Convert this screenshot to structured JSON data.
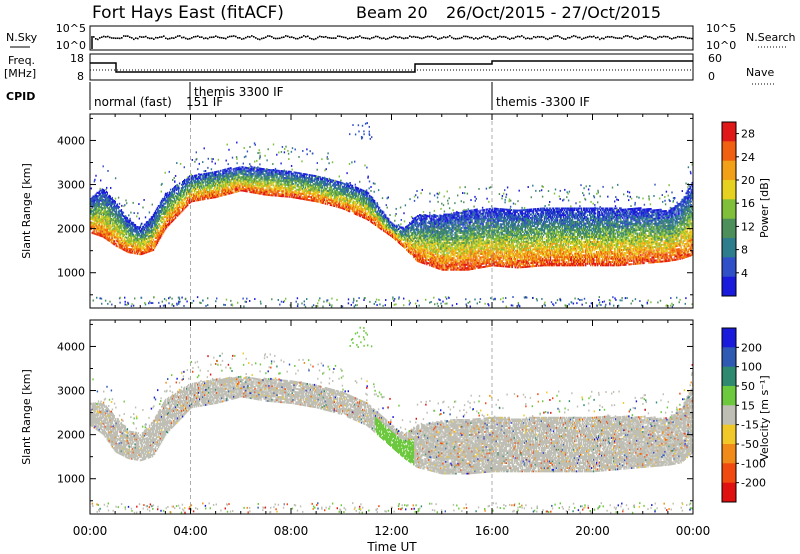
{
  "header": {
    "station": "Fort Hays East (fitACF)",
    "beam": "Beam 20",
    "date_range": "26/Oct/2015 - 27/Oct/2015"
  },
  "top_panels": {
    "nsky_label": "N.Sky",
    "nsearch_label": "N.Search",
    "nsky_ticks": [
      "10^5",
      "10^0"
    ],
    "nsearch_ticks": [
      "10^5",
      "10^0"
    ],
    "freq_label": "Freq.",
    "freq_unit": "[MHz]",
    "freq_ticks": [
      "18",
      "8"
    ],
    "nave_label": "Nave",
    "nave_ticks": [
      "60",
      "0"
    ],
    "cpid_label": "CPID",
    "cpid_segments": [
      {
        "label": "normal (fast)",
        "start_hr": 0
      },
      {
        "label": "151 IF",
        "start_hr": 3.5
      },
      {
        "label": "themis 3300 IF",
        "start_hr": 4.0
      },
      {
        "label": "themis -3300 IF",
        "start_hr": 16.0
      }
    ]
  },
  "chart_data": [
    {
      "type": "heatmap",
      "name": "power",
      "ylabel": "Slant Range [km]",
      "xlabel": "Time UT",
      "xlim_hours": [
        0,
        24
      ],
      "ylim_km": [
        200,
        4600
      ],
      "x_tick_labels": [
        "00:00",
        "04:00",
        "08:00",
        "12:00",
        "16:00",
        "20:00",
        "00:00"
      ],
      "y_tick_labels": [
        "1000",
        "2000",
        "3000",
        "4000"
      ],
      "colorbar_label": "Power [dB]",
      "colorbar_ticks": [
        "4",
        "8",
        "12",
        "16",
        "20",
        "24",
        "28"
      ],
      "colorbar_range": [
        0,
        30
      ],
      "colors": [
        "#1a1adc",
        "#3050c8",
        "#2e7d8c",
        "#4d8f5a",
        "#7fbf3a",
        "#e6d020",
        "#f2a018",
        "#f06010",
        "#e01818"
      ],
      "band_outline_km": {
        "hours": [
          0,
          0.5,
          1,
          1.5,
          2,
          2.5,
          3,
          4,
          5,
          6,
          7,
          8,
          9,
          10,
          11,
          12,
          12.5,
          13,
          14,
          15,
          16,
          17,
          18,
          19,
          20,
          21,
          22,
          23,
          23.5,
          24
        ],
        "lower": [
          1900,
          1800,
          1600,
          1450,
          1400,
          1500,
          2000,
          2600,
          2700,
          2850,
          2750,
          2700,
          2600,
          2450,
          2200,
          1800,
          1550,
          1250,
          1050,
          1050,
          1150,
          1100,
          1150,
          1150,
          1150,
          1150,
          1200,
          1250,
          1300,
          1400
        ],
        "upper": [
          2700,
          2900,
          2600,
          2200,
          2000,
          2300,
          2800,
          3200,
          3300,
          3400,
          3350,
          3300,
          3200,
          3050,
          2850,
          2100,
          2000,
          2300,
          2300,
          2400,
          2450,
          2400,
          2450,
          2450,
          2450,
          2450,
          2450,
          2400,
          2600,
          3100
        ]
      }
    },
    {
      "type": "heatmap",
      "name": "velocity",
      "ylabel": "Slant Range [km]",
      "xlabel": "Time UT",
      "xlim_hours": [
        0,
        24
      ],
      "ylim_km": [
        200,
        4600
      ],
      "x_tick_labels": [
        "00:00",
        "04:00",
        "08:00",
        "12:00",
        "16:00",
        "20:00",
        "00:00"
      ],
      "y_tick_labels": [
        "1000",
        "2000",
        "3000",
        "4000"
      ],
      "colorbar_label": "Velocity [m s⁻¹]",
      "colorbar_ticks": [
        "200",
        "100",
        "50",
        "15",
        "-15",
        "-50",
        "-100",
        "-200"
      ],
      "colors": [
        "#1a1adc",
        "#2e5ab4",
        "#2e8a6e",
        "#6cc83c",
        "#bebeb4",
        "#f0c828",
        "#f08a18",
        "#f04a10",
        "#e01010"
      ],
      "band_outline_km": {
        "hours": [
          0,
          0.5,
          1,
          1.5,
          2,
          2.5,
          3,
          4,
          5,
          6,
          7,
          8,
          9,
          10,
          11,
          12,
          12.5,
          13,
          14,
          15,
          16,
          17,
          18,
          19,
          20,
          21,
          22,
          23,
          23.5,
          24
        ],
        "lower": [
          2200,
          2000,
          1600,
          1450,
          1400,
          1500,
          2000,
          2600,
          2700,
          2850,
          2750,
          2700,
          2600,
          2450,
          2200,
          1700,
          1450,
          1250,
          1100,
          1100,
          1150,
          1150,
          1150,
          1150,
          1150,
          1200,
          1250,
          1300,
          1350,
          1600
        ],
        "upper": [
          2700,
          2700,
          2400,
          2100,
          2000,
          2300,
          2800,
          3150,
          3250,
          3300,
          3250,
          3200,
          3100,
          2950,
          2700,
          2200,
          2000,
          2200,
          2300,
          2350,
          2400,
          2350,
          2400,
          2400,
          2400,
          2400,
          2400,
          2350,
          2600,
          3100
        ]
      }
    }
  ]
}
